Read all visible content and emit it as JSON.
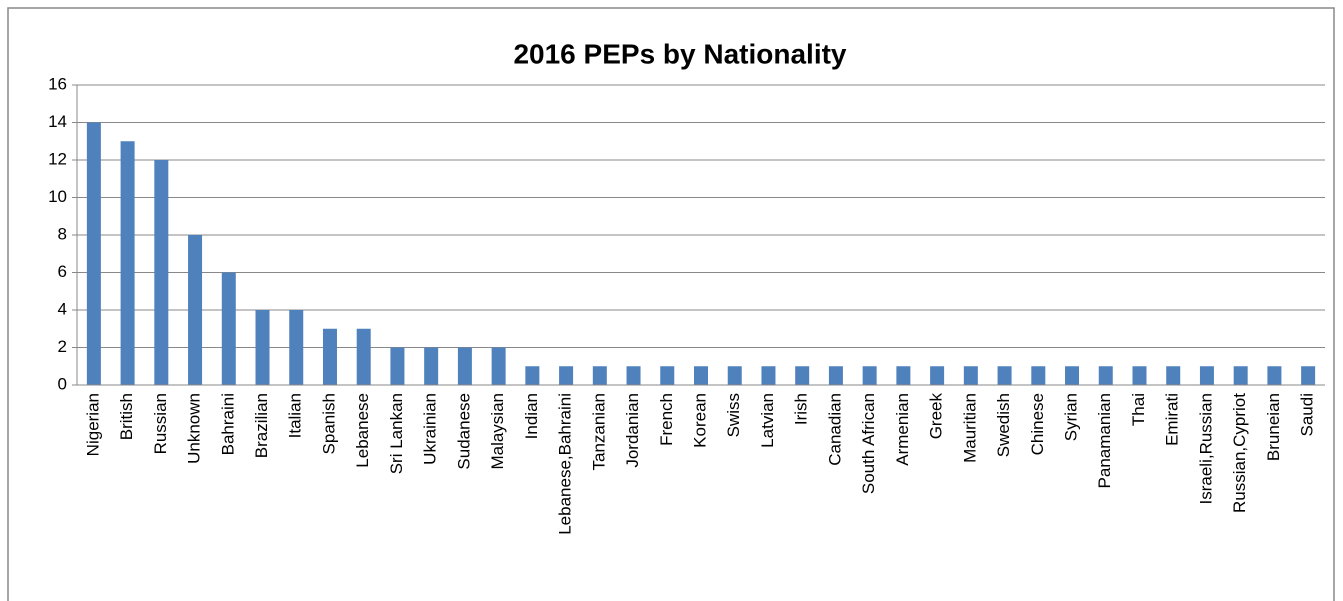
{
  "chart_data": {
    "type": "bar",
    "title": "2016 PEPs by Nationality",
    "categories": [
      "Nigerian",
      "British",
      "Russian",
      "Unknown",
      "Bahraini",
      "Brazilian",
      "Italian",
      "Spanish",
      "Lebanese",
      "Sri Lankan",
      "Ukrainian",
      "Sudanese",
      "Malaysian",
      "Indian",
      "Lebanese,Bahraini",
      "Tanzanian",
      "Jordanian",
      "French",
      "Korean",
      "Swiss",
      "Latvian",
      "Irish",
      "Canadian",
      "South African",
      "Armenian",
      "Greek",
      "Mauritian",
      "Swedish",
      "Chinese",
      "Syrian",
      "Panamanian",
      "Thai",
      "Emirati",
      "Israeli,Russian",
      "Russian,Cypriot",
      "Bruneian",
      "Saudi"
    ],
    "values": [
      14,
      13,
      12,
      8,
      6,
      4,
      4,
      3,
      3,
      2,
      2,
      2,
      2,
      1,
      1,
      1,
      1,
      1,
      1,
      1,
      1,
      1,
      1,
      1,
      1,
      1,
      1,
      1,
      1,
      1,
      1,
      1,
      1,
      1,
      1,
      1,
      1
    ],
    "color": "#4f81bd",
    "ylim": [
      0,
      16
    ],
    "yticks": [
      0,
      2,
      4,
      6,
      8,
      10,
      12,
      14,
      16
    ],
    "grid": true
  }
}
